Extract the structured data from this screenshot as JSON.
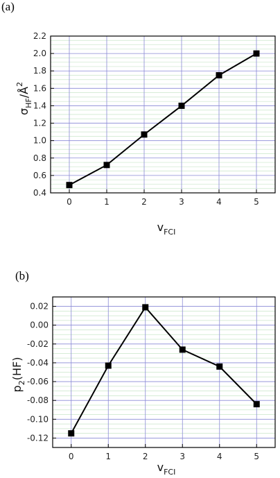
{
  "chart_data": [
    {
      "type": "line",
      "panel_label": "(a)",
      "x": [
        0,
        1,
        2,
        3,
        4,
        5
      ],
      "series": [
        {
          "values": [
            0.49,
            0.72,
            1.07,
            1.4,
            1.75,
            2.0
          ]
        }
      ],
      "xlim": [
        -0.5,
        5.5
      ],
      "ylim": [
        0.4,
        2.2
      ],
      "xticks": [
        "0",
        "1",
        "2",
        "3",
        "4",
        "5"
      ],
      "yticks": [
        "0.4",
        "0.6",
        "0.8",
        "1.0",
        "1.2",
        "1.4",
        "1.6",
        "1.8",
        "2.0",
        "2.2"
      ],
      "xlabel": {
        "main": "v",
        "sub": "FCI"
      },
      "ylabel": {
        "main": "σ",
        "sub": "HF",
        "tail": "/Å",
        "sup": "2"
      },
      "grid": true,
      "colors": {
        "line": "#000000",
        "marker": "#000000",
        "grid": "#8a8ad6",
        "minor_grid": "#c9e6c9"
      }
    },
    {
      "type": "line",
      "panel_label": "(b)",
      "x": [
        0,
        1,
        2,
        3,
        4,
        5
      ],
      "series": [
        {
          "values": [
            -0.115,
            -0.043,
            0.019,
            -0.026,
            -0.044,
            -0.084
          ]
        }
      ],
      "xlim": [
        -0.5,
        5.5
      ],
      "ylim": [
        -0.13,
        0.03
      ],
      "xticks": [
        "0",
        "1",
        "2",
        "3",
        "4",
        "5"
      ],
      "yticks": [
        "-0.12",
        "-0.10",
        "-0.08",
        "-0.06",
        "-0.04",
        "-0.02",
        "0.00",
        "0.02"
      ],
      "xlabel": {
        "main": "v",
        "sub": "FCI"
      },
      "ylabel": {
        "main": "p",
        "sub": "2",
        "tail": "(HF)"
      },
      "grid": true,
      "colors": {
        "line": "#000000",
        "marker": "#000000",
        "grid": "#8a8ad6",
        "minor_grid": "#c9e6c9"
      }
    }
  ]
}
